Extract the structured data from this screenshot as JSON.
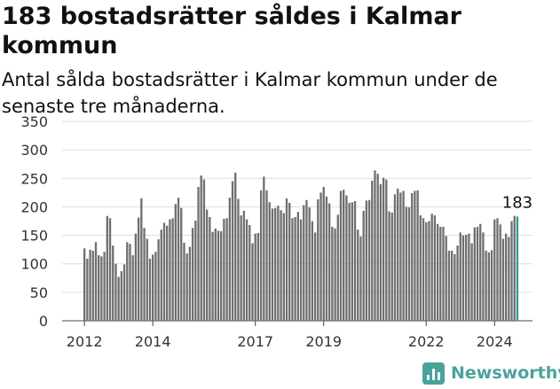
{
  "header": {
    "title": "183 bostadsrätter såldes i Kalmar kommun",
    "subtitle": "Antal sålda bostadsrätter i Kalmar kommun under de senaste tre månaderna."
  },
  "brand": {
    "name": "Newsworthy",
    "color": "#4aa39b"
  },
  "colors": {
    "bar": "#6f6f72",
    "highlight": "#2a9d96",
    "grid": "#dddddd"
  },
  "chart_data": {
    "type": "bar",
    "y_ticks": [
      0,
      50,
      100,
      150,
      200,
      250,
      300,
      350
    ],
    "ylim": [
      0,
      350
    ],
    "x_tick_labels": [
      {
        "label": "2012",
        "index": 0
      },
      {
        "label": "2014",
        "index": 24
      },
      {
        "label": "2017",
        "index": 60
      },
      {
        "label": "2019",
        "index": 84
      },
      {
        "label": "2022",
        "index": 120
      },
      {
        "label": "2024",
        "index": 144
      }
    ],
    "values": [
      127,
      109,
      125,
      123,
      138,
      115,
      113,
      121,
      184,
      180,
      132,
      100,
      77,
      87,
      99,
      138,
      135,
      115,
      153,
      181,
      215,
      163,
      144,
      109,
      116,
      121,
      143,
      160,
      172,
      167,
      178,
      180,
      205,
      216,
      198,
      137,
      118,
      130,
      163,
      176,
      235,
      255,
      248,
      195,
      182,
      156,
      162,
      158,
      157,
      179,
      180,
      216,
      245,
      260,
      214,
      185,
      193,
      178,
      168,
      136,
      153,
      154,
      229,
      253,
      229,
      208,
      197,
      198,
      202,
      194,
      189,
      215,
      207,
      180,
      182,
      191,
      178,
      203,
      212,
      199,
      175,
      155,
      213,
      225,
      235,
      218,
      206,
      165,
      162,
      186,
      228,
      230,
      220,
      207,
      208,
      210,
      160,
      148,
      193,
      211,
      212,
      246,
      264,
      258,
      240,
      251,
      248,
      192,
      190,
      222,
      232,
      225,
      228,
      200,
      199,
      224,
      228,
      229,
      185,
      180,
      173,
      175,
      188,
      185,
      170,
      165,
      165,
      149,
      123,
      123,
      117,
      132,
      155,
      150,
      151,
      153,
      136,
      164,
      165,
      170,
      155,
      123,
      120,
      124,
      178,
      180,
      169,
      144,
      153,
      147,
      175,
      184,
      183
    ],
    "highlight_index": 152,
    "annotation": "183"
  }
}
